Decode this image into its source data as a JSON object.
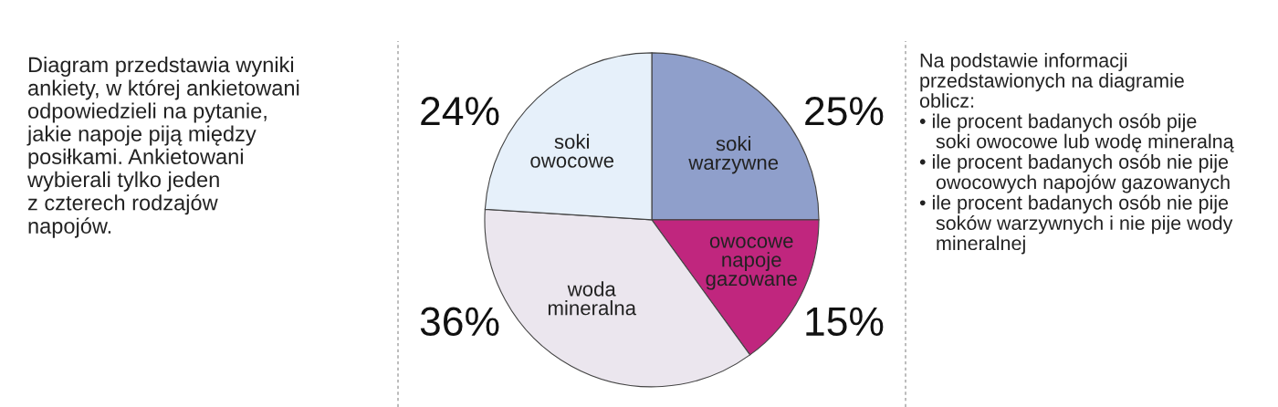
{
  "chart_data": {
    "type": "pie",
    "categories": [
      "soki\nwarzywne",
      "owocowe\nnapoje\ngazowane",
      "woda\nmineralna",
      "soki\nowocowe"
    ],
    "values": [
      25,
      15,
      36,
      24
    ],
    "colors": [
      "#8f9fcb",
      "#c0267e",
      "#ebe6ee",
      "#e6f0fa"
    ],
    "value_labels": [
      "25%",
      "15%",
      "36%",
      "24%"
    ],
    "annotations": [
      "Diagram przedstawia wyniki\nankiety, w której ankietowani\nodpowiedzieli na pytanie,\njakie napoje piją między\nposiłkami. Ankietowani\nwybierali tylko jeden\nz czterech rodzajów\nnapojów.",
      "Na podstawie informacji\nprzedstawionych na diagramie\noblicz:\n• ile procent badanych osób pije\n   soki owocowe lub wodę mineralną\n• ile procent badanych osób nie pije\n   owocowych napojów gazowanych\n• ile procent badanych osób nie pije\n   soków warzywnych i nie pije wody\n   mineralnej"
    ]
  }
}
